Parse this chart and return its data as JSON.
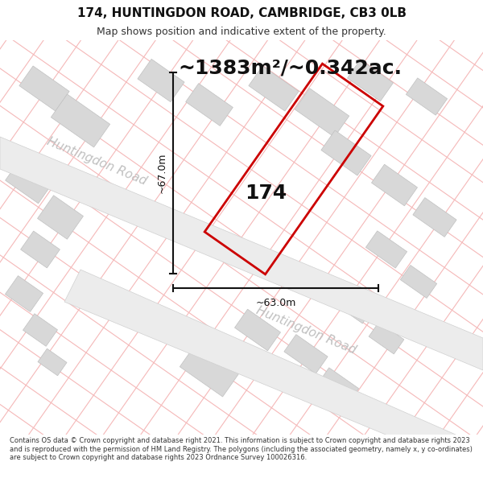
{
  "title_line1": "174, HUNTINGDON ROAD, CAMBRIDGE, CB3 0LB",
  "title_line2": "Map shows position and indicative extent of the property.",
  "area_text": "~1383m²/~0.342ac.",
  "label_174": "174",
  "dim_width": "~63.0m",
  "dim_height": "~67.0m",
  "road_label_upper": "Huntingdon Road",
  "road_label_lower": "Huntingdon Road",
  "footer_text": "Contains OS data © Crown copyright and database right 2021. This information is subject to Crown copyright and database rights 2023 and is reproduced with the permission of HM Land Registry. The polygons (including the associated geometry, namely x, y co-ordinates) are subject to Crown copyright and database rights 2023 Ordnance Survey 100026316.",
  "map_bg": "#ffffff",
  "footer_bg": "#f5f5f5",
  "title_bg": "#ffffff",
  "road_fill": "#e8e8e8",
  "block_fill": "#d8d8d8",
  "block_edge": "#c0c0c0",
  "pink_color": "#f5b8b8",
  "pink_lw": 0.8,
  "road_label_color": "#c0c0c0",
  "plot_color": "#cc0000",
  "plot_lw": 2.0,
  "dim_color": "#111111",
  "text_dark": "#111111",
  "title_fontsize": 11,
  "subtitle_fontsize": 9,
  "area_fontsize": 18,
  "label_fontsize": 18,
  "dim_fontsize": 9,
  "road_fontsize": 11
}
